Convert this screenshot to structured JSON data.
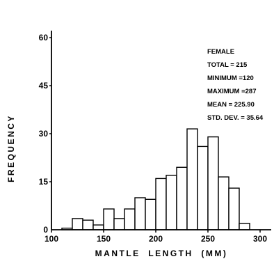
{
  "chart_data": {
    "type": "bar",
    "title": "",
    "xlabel": "MANTLE  LENGTH  (MM)",
    "ylabel": "FREQUENCY",
    "xlim": [
      100,
      300
    ],
    "ylim": [
      0,
      60
    ],
    "grid": false,
    "bin_width": 10,
    "x_ticks": [
      "100",
      "150",
      "200",
      "250",
      "300"
    ],
    "y_ticks": [
      "0",
      "15",
      "30",
      "45",
      "60"
    ],
    "bins": [
      {
        "start": 110,
        "end": 120,
        "value": 0.5
      },
      {
        "start": 120,
        "end": 130,
        "value": 3.5
      },
      {
        "start": 130,
        "end": 140,
        "value": 3
      },
      {
        "start": 140,
        "end": 150,
        "value": 1.5
      },
      {
        "start": 150,
        "end": 160,
        "value": 6.5
      },
      {
        "start": 160,
        "end": 170,
        "value": 3.5
      },
      {
        "start": 170,
        "end": 180,
        "value": 6.5
      },
      {
        "start": 180,
        "end": 190,
        "value": 10
      },
      {
        "start": 190,
        "end": 200,
        "value": 9.5
      },
      {
        "start": 200,
        "end": 210,
        "value": 16
      },
      {
        "start": 210,
        "end": 220,
        "value": 17
      },
      {
        "start": 220,
        "end": 230,
        "value": 19.5
      },
      {
        "start": 230,
        "end": 240,
        "value": 31.5
      },
      {
        "start": 240,
        "end": 250,
        "value": 26
      },
      {
        "start": 250,
        "end": 260,
        "value": 29
      },
      {
        "start": 260,
        "end": 270,
        "value": 16.5
      },
      {
        "start": 270,
        "end": 280,
        "value": 13
      },
      {
        "start": 280,
        "end": 290,
        "value": 2
      }
    ],
    "annotations": [
      "FEMALE",
      "TOTAL = 215",
      "MINIMUM =120",
      "MAXIMUM =287",
      "MEAN = 225.90",
      "STD. DEV. = 35.64"
    ]
  }
}
